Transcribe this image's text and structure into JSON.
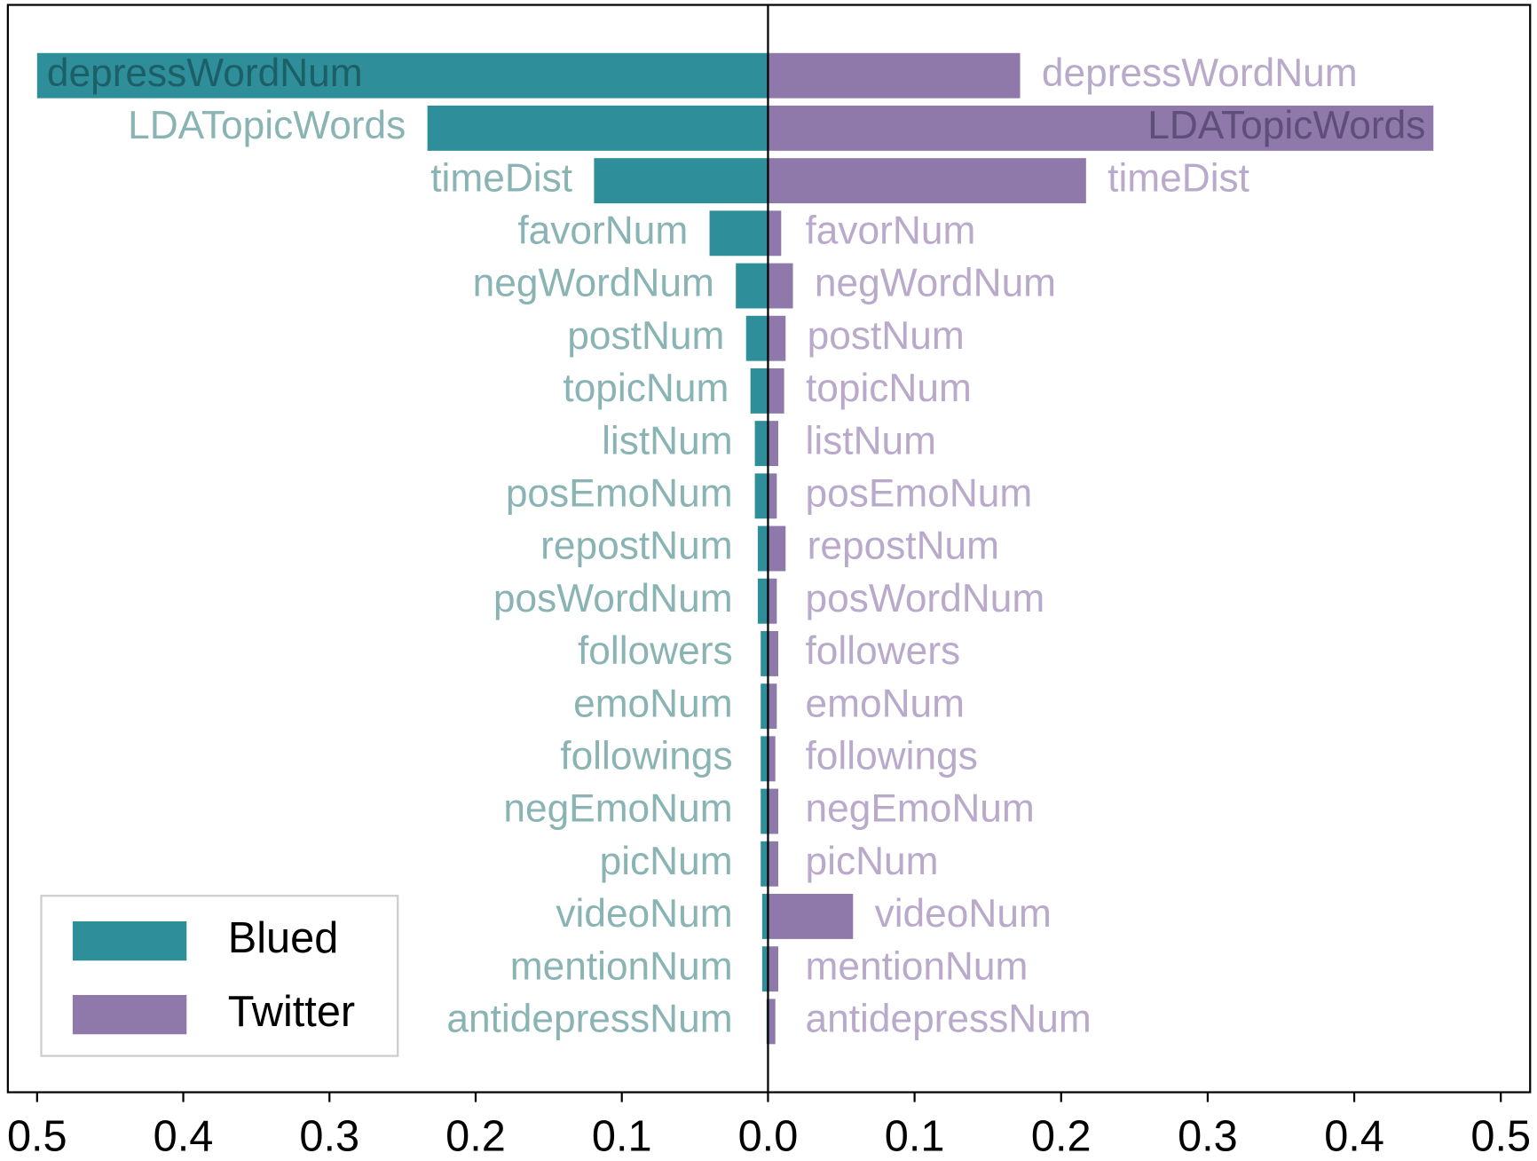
{
  "chart_data": {
    "type": "bar",
    "orientation": "horizontal",
    "categories": [
      "depressWordNum",
      "LDATopicWords",
      "timeDist",
      "favorNum",
      "negWordNum",
      "postNum",
      "topicNum",
      "listNum",
      "posEmoNum",
      "repostNum",
      "posWordNum",
      "followers",
      "emoNum",
      "followings",
      "negEmoNum",
      "picNum",
      "videoNum",
      "mentionNum",
      "antidepressNum"
    ],
    "series": [
      {
        "name": "Blued",
        "color": "#2e8f9b",
        "values": [
          0.5,
          0.233,
          0.119,
          0.04,
          0.022,
          0.015,
          0.012,
          0.009,
          0.009,
          0.007,
          0.007,
          0.005,
          0.005,
          0.005,
          0.005,
          0.005,
          0.004,
          0.004,
          0.001
        ],
        "xlim": [
          0.52,
          0
        ],
        "xticks": [
          0.5,
          0.4,
          0.3,
          0.2,
          0.1,
          {
            "value": 0,
            "label": "0.0"
          }
        ]
      },
      {
        "name": "Twitter",
        "color": "#8e79aa",
        "values": [
          0.172,
          0.454,
          0.217,
          0.009,
          0.017,
          0.012,
          0.011,
          0.007,
          0.006,
          0.012,
          0.006,
          0.007,
          0.006,
          0.005,
          0.007,
          0.007,
          0.058,
          0.007,
          0.005
        ],
        "xlim": [
          0,
          0.52
        ],
        "xticks": [
          0.1,
          0.2,
          0.3,
          0.4,
          0.5
        ]
      }
    ],
    "legend": "lower left"
  }
}
